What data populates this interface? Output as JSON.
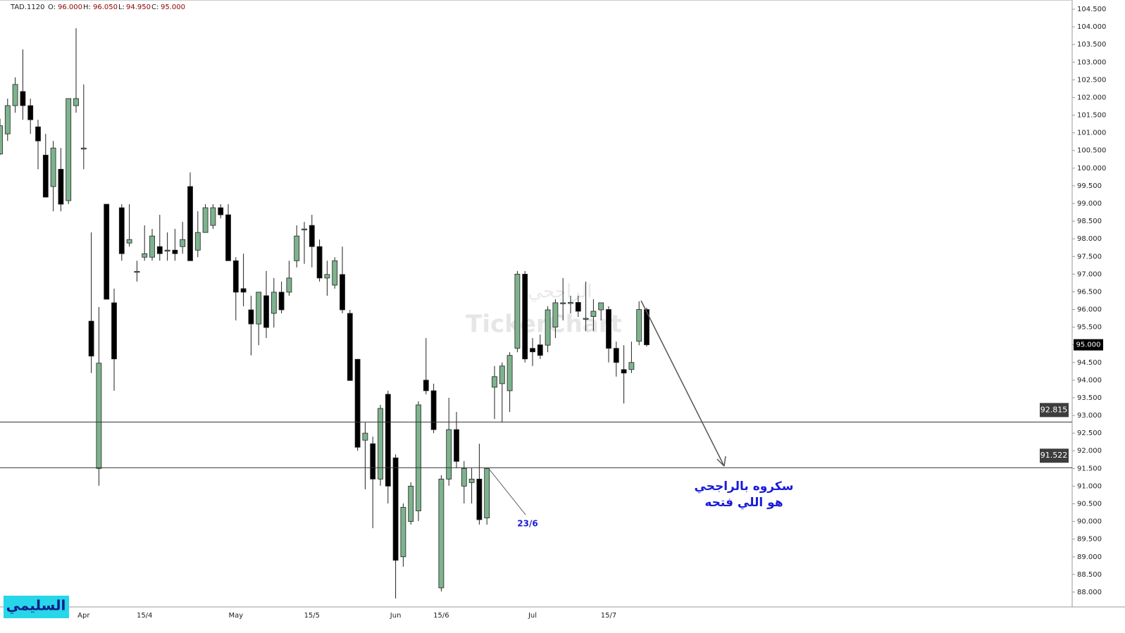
{
  "header": {
    "symbol": "TAD.1120",
    "fields": [
      "O:",
      "H:",
      "L:",
      "C:"
    ],
    "values": [
      "96.000",
      "96.050",
      "94.950",
      "95.000"
    ]
  },
  "chart_data": {
    "type": "candlestick",
    "categories": [
      null,
      null,
      null,
      null,
      null,
      null,
      null,
      null,
      null,
      null,
      null,
      "Apr",
      null,
      null,
      null,
      null,
      null,
      null,
      null,
      "15/4",
      null,
      null,
      null,
      null,
      null,
      null,
      null,
      null,
      null,
      null,
      null,
      "May",
      null,
      null,
      null,
      null,
      null,
      null,
      null,
      null,
      null,
      "15/5",
      null,
      null,
      null,
      null,
      null,
      null,
      null,
      null,
      null,
      null,
      "Jun",
      null,
      null,
      null,
      null,
      null,
      "15/6",
      null,
      null,
      null,
      null,
      null,
      null,
      null,
      null,
      null,
      null,
      null,
      "Jul",
      null,
      null,
      null,
      null,
      null,
      null,
      null,
      null,
      null,
      "15/7",
      null,
      null,
      null,
      null,
      null
    ],
    "open": [
      100.4,
      100.97,
      101.77,
      102.17,
      101.77,
      101.17,
      100.37,
      99.48,
      99.97,
      99.08,
      101.77,
      100.57,
      95.67,
      91.5,
      98.98,
      96.19,
      98.88,
      97.88,
      97.08,
      97.48,
      97.48,
      97.78,
      97.68,
      97.68,
      97.78,
      99.48,
      97.68,
      98.18,
      98.38,
      98.88,
      98.68,
      97.38,
      96.59,
      95.99,
      95.59,
      96.39,
      95.89,
      96.49,
      96.49,
      97.38,
      98.28,
      98.38,
      97.78,
      96.89,
      96.69,
      96.99,
      95.89,
      94.59,
      92.3,
      92.2,
      91.2,
      93.6,
      91.8,
      89.0,
      90.0,
      90.3,
      94.0,
      93.7,
      88.12,
      91.2,
      92.6,
      91.0,
      91.1,
      91.2,
      90.1,
      93.8,
      93.9,
      93.7,
      94.9,
      97.0,
      94.9,
      95.0,
      94.99,
      95.5,
      96.19,
      96.2,
      96.2,
      95.75,
      95.8,
      95.99,
      96.0,
      94.9,
      94.3,
      94.3,
      95.1,
      96.0
    ],
    "high": [
      101.4,
      101.97,
      102.57,
      103.36,
      101.97,
      101.37,
      100.97,
      100.77,
      100.57,
      101.97,
      103.96,
      102.37,
      98.18,
      96.07,
      98.98,
      96.59,
      98.98,
      98.98,
      97.38,
      98.38,
      98.28,
      98.68,
      98.18,
      98.28,
      98.48,
      99.88,
      98.78,
      98.98,
      98.98,
      98.98,
      98.98,
      97.48,
      97.58,
      96.39,
      96.49,
      97.09,
      96.89,
      96.79,
      97.38,
      98.38,
      98.48,
      98.68,
      97.98,
      97.38,
      97.48,
      97.78,
      95.99,
      94.6,
      92.8,
      92.4,
      93.3,
      93.7,
      91.9,
      90.51,
      91.11,
      93.4,
      95.19,
      93.9,
      91.31,
      93.5,
      93.1,
      91.71,
      91.51,
      92.2,
      91.51,
      94.4,
      94.5,
      94.79,
      97.09,
      97.09,
      95.19,
      95.29,
      96.09,
      96.29,
      96.89,
      96.39,
      96.39,
      96.79,
      96.29,
      96.19,
      96.09,
      95.09,
      94.99,
      95.09,
      96.23,
      96.05
    ],
    "low": [
      100.37,
      100.77,
      101.57,
      101.37,
      100.97,
      99.97,
      99.18,
      98.78,
      98.78,
      98.98,
      101.57,
      99.97,
      94.2,
      91.01,
      96.29,
      93.7,
      97.38,
      97.78,
      96.79,
      97.38,
      97.38,
      97.38,
      97.38,
      97.38,
      97.58,
      97.38,
      97.48,
      98.18,
      98.28,
      98.58,
      97.38,
      95.69,
      96.09,
      94.7,
      94.99,
      95.19,
      95.49,
      95.89,
      96.39,
      97.19,
      97.29,
      97.19,
      96.79,
      96.39,
      96.59,
      95.89,
      93.99,
      92.0,
      90.91,
      89.81,
      91.01,
      90.51,
      87.82,
      88.72,
      89.91,
      90.01,
      93.6,
      92.5,
      88.02,
      91.01,
      91.51,
      90.51,
      90.51,
      89.91,
      89.91,
      92.9,
      92.8,
      93.1,
      94.79,
      94.5,
      94.4,
      94.6,
      94.79,
      95.19,
      95.69,
      95.89,
      95.79,
      95.39,
      95.39,
      95.69,
      94.5,
      94.1,
      93.34,
      94.2,
      94.99,
      94.95
    ],
    "close": [
      101.2,
      101.77,
      102.37,
      101.77,
      101.37,
      100.77,
      99.18,
      100.57,
      98.98,
      101.97,
      101.97,
      100.57,
      94.68,
      94.48,
      96.29,
      94.6,
      97.58,
      97.98,
      97.08,
      97.58,
      98.08,
      97.58,
      97.68,
      97.58,
      97.98,
      97.38,
      98.18,
      98.88,
      98.88,
      98.68,
      97.38,
      96.49,
      96.49,
      95.59,
      96.49,
      95.49,
      96.49,
      95.99,
      96.89,
      98.08,
      98.28,
      97.78,
      96.89,
      96.99,
      97.38,
      95.99,
      93.99,
      92.1,
      92.5,
      91.2,
      93.2,
      91.0,
      88.9,
      90.4,
      91.0,
      93.3,
      93.7,
      92.6,
      91.2,
      92.6,
      91.7,
      91.5,
      91.2,
      90.05,
      91.5,
      94.1,
      94.4,
      94.7,
      97.0,
      94.6,
      94.8,
      94.7,
      95.99,
      96.19,
      96.19,
      96.2,
      95.95,
      95.75,
      95.95,
      96.19,
      94.9,
      94.5,
      94.2,
      94.5,
      96.0,
      95.0
    ],
    "up_color": "#7db38d",
    "down_color": "#000000",
    "ylim": [
      87.58,
      104.76
    ],
    "yticks": [
      {
        "value": 88,
        "label": "88.000"
      },
      {
        "value": 88.5,
        "label": "88.500"
      },
      {
        "value": 89,
        "label": "89.000"
      },
      {
        "value": 89.5,
        "label": "89.500"
      },
      {
        "value": 90,
        "label": "90.000"
      },
      {
        "value": 90.5,
        "label": "90.500"
      },
      {
        "value": 91,
        "label": "91.000"
      },
      {
        "value": 91.5,
        "label": "91.500"
      },
      {
        "value": 92,
        "label": "92.000"
      },
      {
        "value": 92.5,
        "label": "92.500"
      },
      {
        "value": 93,
        "label": "93.000"
      },
      {
        "value": 93.5,
        "label": "93.500"
      },
      {
        "value": 94,
        "label": "94.000"
      },
      {
        "value": 94.5,
        "label": "94.500"
      },
      {
        "value": 95,
        "label": "95.000"
      },
      {
        "value": 95.5,
        "label": "95.500"
      },
      {
        "value": 96,
        "label": "96.000"
      },
      {
        "value": 96.5,
        "label": "96.500"
      },
      {
        "value": 97,
        "label": "97.000"
      },
      {
        "value": 97.5,
        "label": "97.500"
      },
      {
        "value": 98,
        "label": "98.000"
      },
      {
        "value": 98.5,
        "label": "98.500"
      },
      {
        "value": 99,
        "label": "99.000"
      },
      {
        "value": 99.5,
        "label": "99.500"
      },
      {
        "value": 100,
        "label": "100.000"
      },
      {
        "value": 100.5,
        "label": "100.500"
      },
      {
        "value": 101,
        "label": "101.000"
      },
      {
        "value": 101.5,
        "label": "101.500"
      },
      {
        "value": 102,
        "label": "102.000"
      },
      {
        "value": 102.5,
        "label": "102.500"
      },
      {
        "value": 103,
        "label": "103.000"
      },
      {
        "value": 103.5,
        "label": "103.500"
      },
      {
        "value": 104,
        "label": "104.000"
      },
      {
        "value": 104.5,
        "label": "104.500"
      }
    ],
    "levels": [
      {
        "value": 92.815,
        "label": "92.815"
      },
      {
        "value": 91.522,
        "label": "91.522"
      }
    ],
    "last_price": {
      "value": 95,
      "label": "95.000"
    }
  },
  "annotations": {
    "comment_line1": "سكروه بالراجحي",
    "comment_line2": "هو اللي فتحه",
    "date_note": "23/6",
    "watermark_ar": "الراجحي",
    "watermark": "TickerChart",
    "author": "السليمي"
  }
}
